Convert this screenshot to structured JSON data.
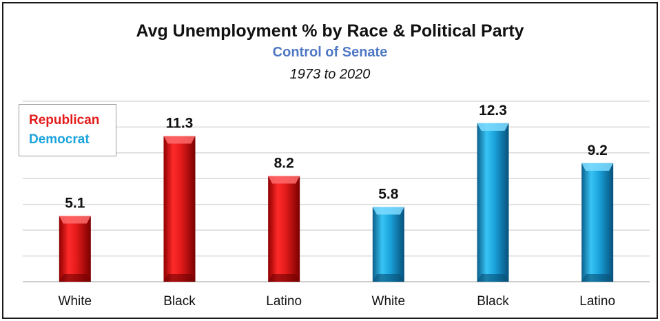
{
  "title": "Avg Unemployment % by Race & Political Party",
  "subtitle": "Control of Senate",
  "date_range": "1973 to 2020",
  "legend": {
    "republican": "Republican",
    "democrat": "Democrat"
  },
  "colors": {
    "republican": "#e31b1b",
    "democrat": "#1aa3dc",
    "subtitle": "#4f78c4"
  },
  "chart_data": {
    "type": "bar",
    "title": "Avg Unemployment % by Race & Political Party",
    "subtitle": "Control of Senate",
    "categories": [
      "White",
      "Black",
      "Latino",
      "White",
      "Black",
      "Latino"
    ],
    "series": [
      {
        "name": "Republican",
        "values": [
          5.1,
          11.3,
          8.2,
          null,
          null,
          null
        ]
      },
      {
        "name": "Democrat",
        "values": [
          null,
          null,
          null,
          5.8,
          12.3,
          9.2
        ]
      }
    ],
    "data_labels": [
      "5.1",
      "11.3",
      "8.2",
      "5.8",
      "12.3",
      "9.2"
    ],
    "ylim": [
      0,
      14
    ],
    "grid": true,
    "legend_position": "top-left"
  }
}
